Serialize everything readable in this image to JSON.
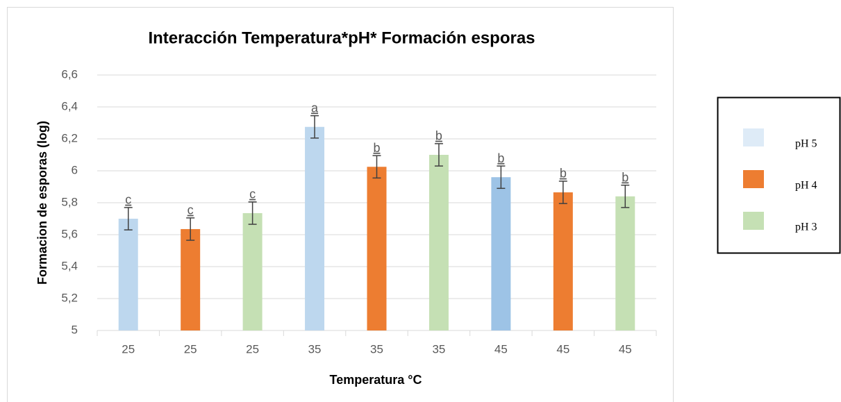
{
  "chart_data": {
    "type": "bar",
    "title": "Interacción Temperatura*pH* Formación esporas",
    "x_label": "Temperatura °C",
    "y_label": "Formacion de esporas (log)",
    "categories": [
      "25",
      "25",
      "25",
      "35",
      "35",
      "35",
      "45",
      "45",
      "45"
    ],
    "values": [
      5.7,
      5.635,
      5.735,
      6.275,
      6.025,
      6.1,
      5.96,
      5.865,
      5.84
    ],
    "errors": [
      0.07,
      0.07,
      0.07,
      0.07,
      0.07,
      0.07,
      0.07,
      0.07,
      0.07
    ],
    "annotations": [
      "c",
      "c",
      "c",
      "a",
      "b",
      "b",
      "b",
      "b",
      "b"
    ],
    "colors": [
      "#bdd7ee",
      "#ed7d31",
      "#c5e0b4",
      "#bdd7ee",
      "#ed7d31",
      "#c5e0b4",
      "#9dc3e6",
      "#ed7d31",
      "#c5e0b4"
    ],
    "ylim": [
      5,
      6.6
    ],
    "yticks": [
      5,
      {
        "value": 5.2,
        "label": "5,2"
      },
      {
        "value": 5.4,
        "label": "5,4"
      },
      {
        "value": 5.6,
        "label": "5,6"
      },
      {
        "value": 5.8,
        "label": "5,8"
      },
      6,
      {
        "value": 6.2,
        "label": "6,2"
      },
      {
        "value": 6.4,
        "label": "6,4"
      },
      {
        "value": 6.6,
        "label": "6,6"
      }
    ],
    "grid": true,
    "legend": [
      {
        "name": "pH 5",
        "color": "#deebf7"
      },
      {
        "name": "pH 4",
        "color": "#ed7d31"
      },
      {
        "name": "pH 3",
        "color": "#c5e0b4"
      }
    ],
    "legend_position": "right"
  }
}
